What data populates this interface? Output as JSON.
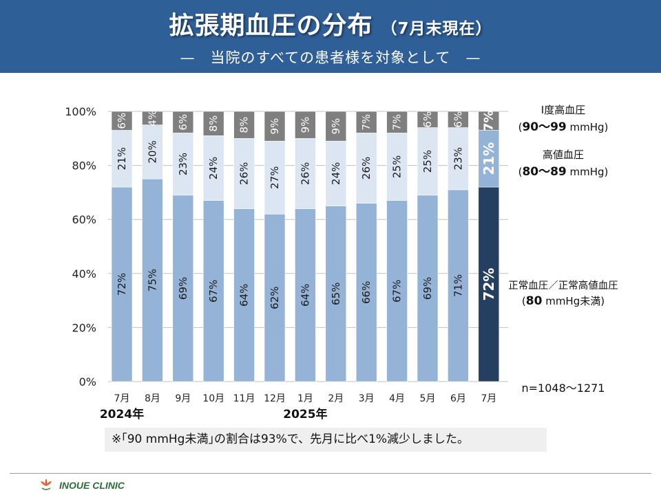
{
  "header": {
    "title": "拡張期血圧の分布",
    "title_sub": "（7月末現在）",
    "subtitle": "—　当院のすべての患者様を対象として　—"
  },
  "chart_data": {
    "type": "bar",
    "stacked": true,
    "ylim": [
      0,
      100
    ],
    "y_ticks": [
      "0%",
      "20%",
      "40%",
      "60%",
      "80%",
      "100%"
    ],
    "categories": [
      "7月",
      "8月",
      "9月",
      "10月",
      "11月",
      "12月",
      "1月",
      "2月",
      "3月",
      "4月",
      "5月",
      "6月",
      "7月"
    ],
    "year_labels": [
      {
        "index": 0,
        "text": "2024年"
      },
      {
        "index": 6,
        "text": "2025年"
      }
    ],
    "series": [
      {
        "key": "normal",
        "values": [
          72,
          75,
          69,
          67,
          64,
          62,
          64,
          65,
          66,
          67,
          69,
          71,
          72
        ],
        "color": "#95b3d7",
        "highlight_color": "#243f60"
      },
      {
        "key": "high_normal",
        "values": [
          21,
          20,
          23,
          24,
          26,
          27,
          26,
          24,
          26,
          25,
          25,
          23,
          21
        ],
        "color": "#dce6f2",
        "highlight_color": "#95b3d7"
      },
      {
        "key": "grade1",
        "values": [
          6,
          4,
          6,
          8,
          8,
          9,
          9,
          9,
          7,
          7,
          6,
          6,
          7
        ],
        "color": "#7f7f7f",
        "highlight_color": "#7f7f7f"
      }
    ],
    "highlight_index": 12,
    "legend": {
      "grade1_line1": "Ⅰ度高血圧",
      "grade1_line2_bold": "90〜99",
      "grade1_line2_unit": " mmHg)",
      "high_normal_line1": "高値血圧",
      "high_normal_line2_bold": "80〜89",
      "high_normal_line2_unit": " mmHg)",
      "normal_line1": "正常血圧／正常高値血圧",
      "normal_line2_bold": "80",
      "normal_line2_unit": " mmHg未満)",
      "paren_open": "("
    },
    "sample_size": "n=1048〜1271"
  },
  "note": "※｢90 mmHg未満｣の割合は93%で、先月に比べ1%減少しました。",
  "footer": {
    "clinic_name": "INOUE CLINIC"
  }
}
